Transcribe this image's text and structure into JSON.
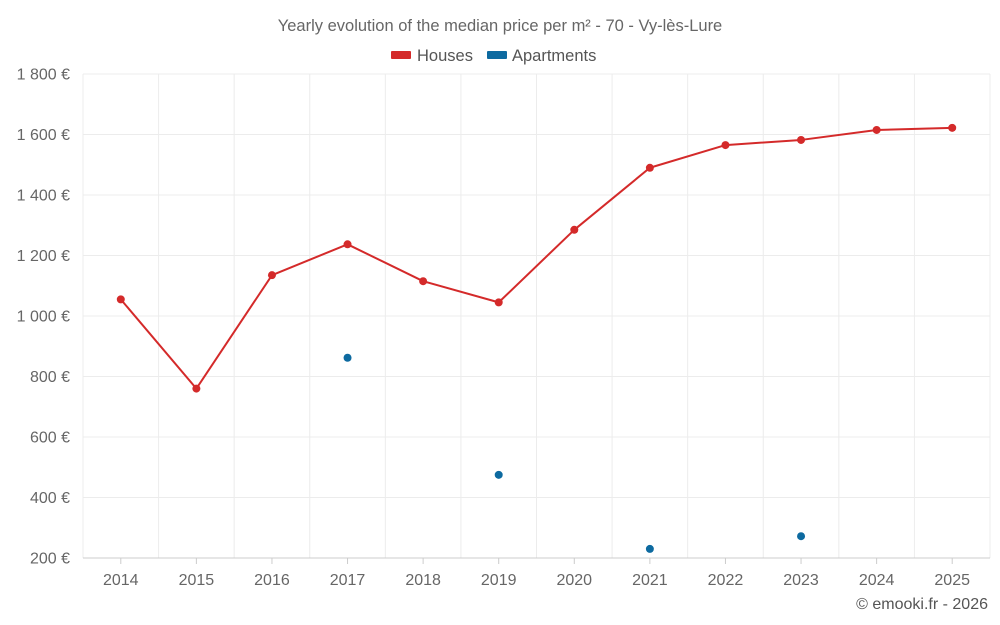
{
  "chart_data": {
    "type": "line",
    "title": "Yearly evolution of the median price per m² - 70 - Vy-lès-Lure",
    "categories": [
      "2014",
      "2015",
      "2016",
      "2017",
      "2018",
      "2019",
      "2020",
      "2021",
      "2022",
      "2023",
      "2024",
      "2025"
    ],
    "ylim": [
      200,
      1800
    ],
    "yticks": [
      200,
      400,
      600,
      800,
      1000,
      1200,
      1400,
      1600,
      1800
    ],
    "ytick_labels": [
      "200 €",
      "400 €",
      "600 €",
      "800 €",
      "1 000 €",
      "1 200 €",
      "1 400 €",
      "1 600 €",
      "1 800 €"
    ],
    "grid": true,
    "legend_position": "top-center",
    "series": [
      {
        "name": "Houses",
        "color": "#d42a2a",
        "style": "line-markers",
        "values": [
          1055,
          760,
          1135,
          1237,
          1115,
          1045,
          1285,
          1490,
          1565,
          1582,
          1615,
          1622
        ]
      },
      {
        "name": "Apartments",
        "color": "#0d6aa0",
        "style": "markers",
        "values": [
          null,
          null,
          null,
          862,
          null,
          475,
          null,
          230,
          null,
          272,
          null,
          null
        ]
      }
    ],
    "credit": "© emooki.fr - 2026"
  }
}
